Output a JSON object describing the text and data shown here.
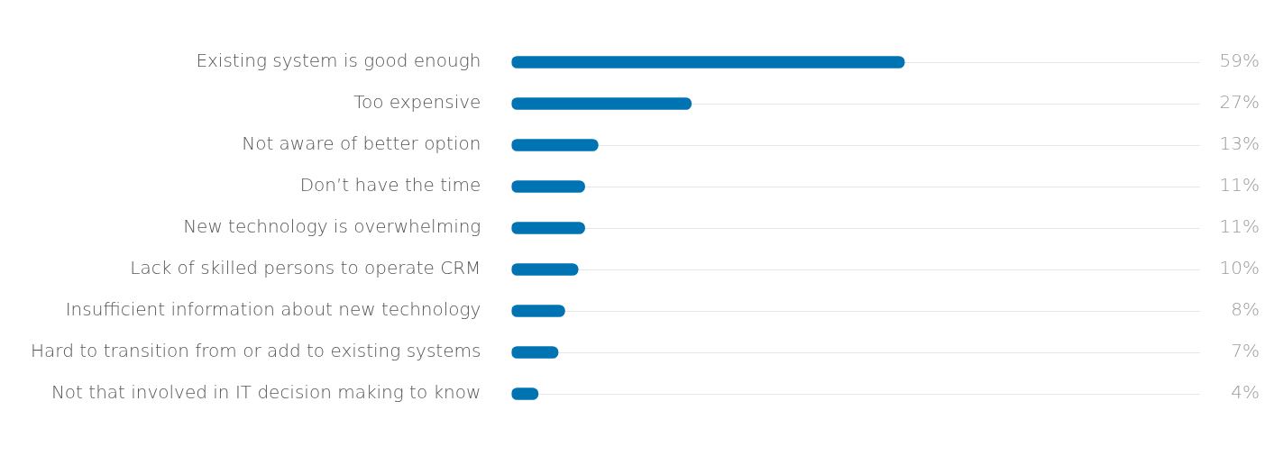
{
  "chart_data": {
    "type": "bar",
    "orientation": "horizontal",
    "categories": [
      "Existing system is good enough",
      "Too expensive",
      "Not aware of better option",
      "Don’t have the time",
      "New technology is overwhelming",
      "Lack of skilled persons to operate CRM",
      "Insufficient information about new technology",
      "Hard to transition from or add to existing systems",
      "Not that involved in IT decision making to know"
    ],
    "values": [
      59,
      27,
      13,
      11,
      11,
      10,
      8,
      7,
      4
    ],
    "value_labels": [
      "59%",
      "27%",
      "13%",
      "11%",
      "11%",
      "10%",
      "8%",
      "7%",
      "4%"
    ],
    "color": "#0073b3",
    "grid": "y"
  }
}
